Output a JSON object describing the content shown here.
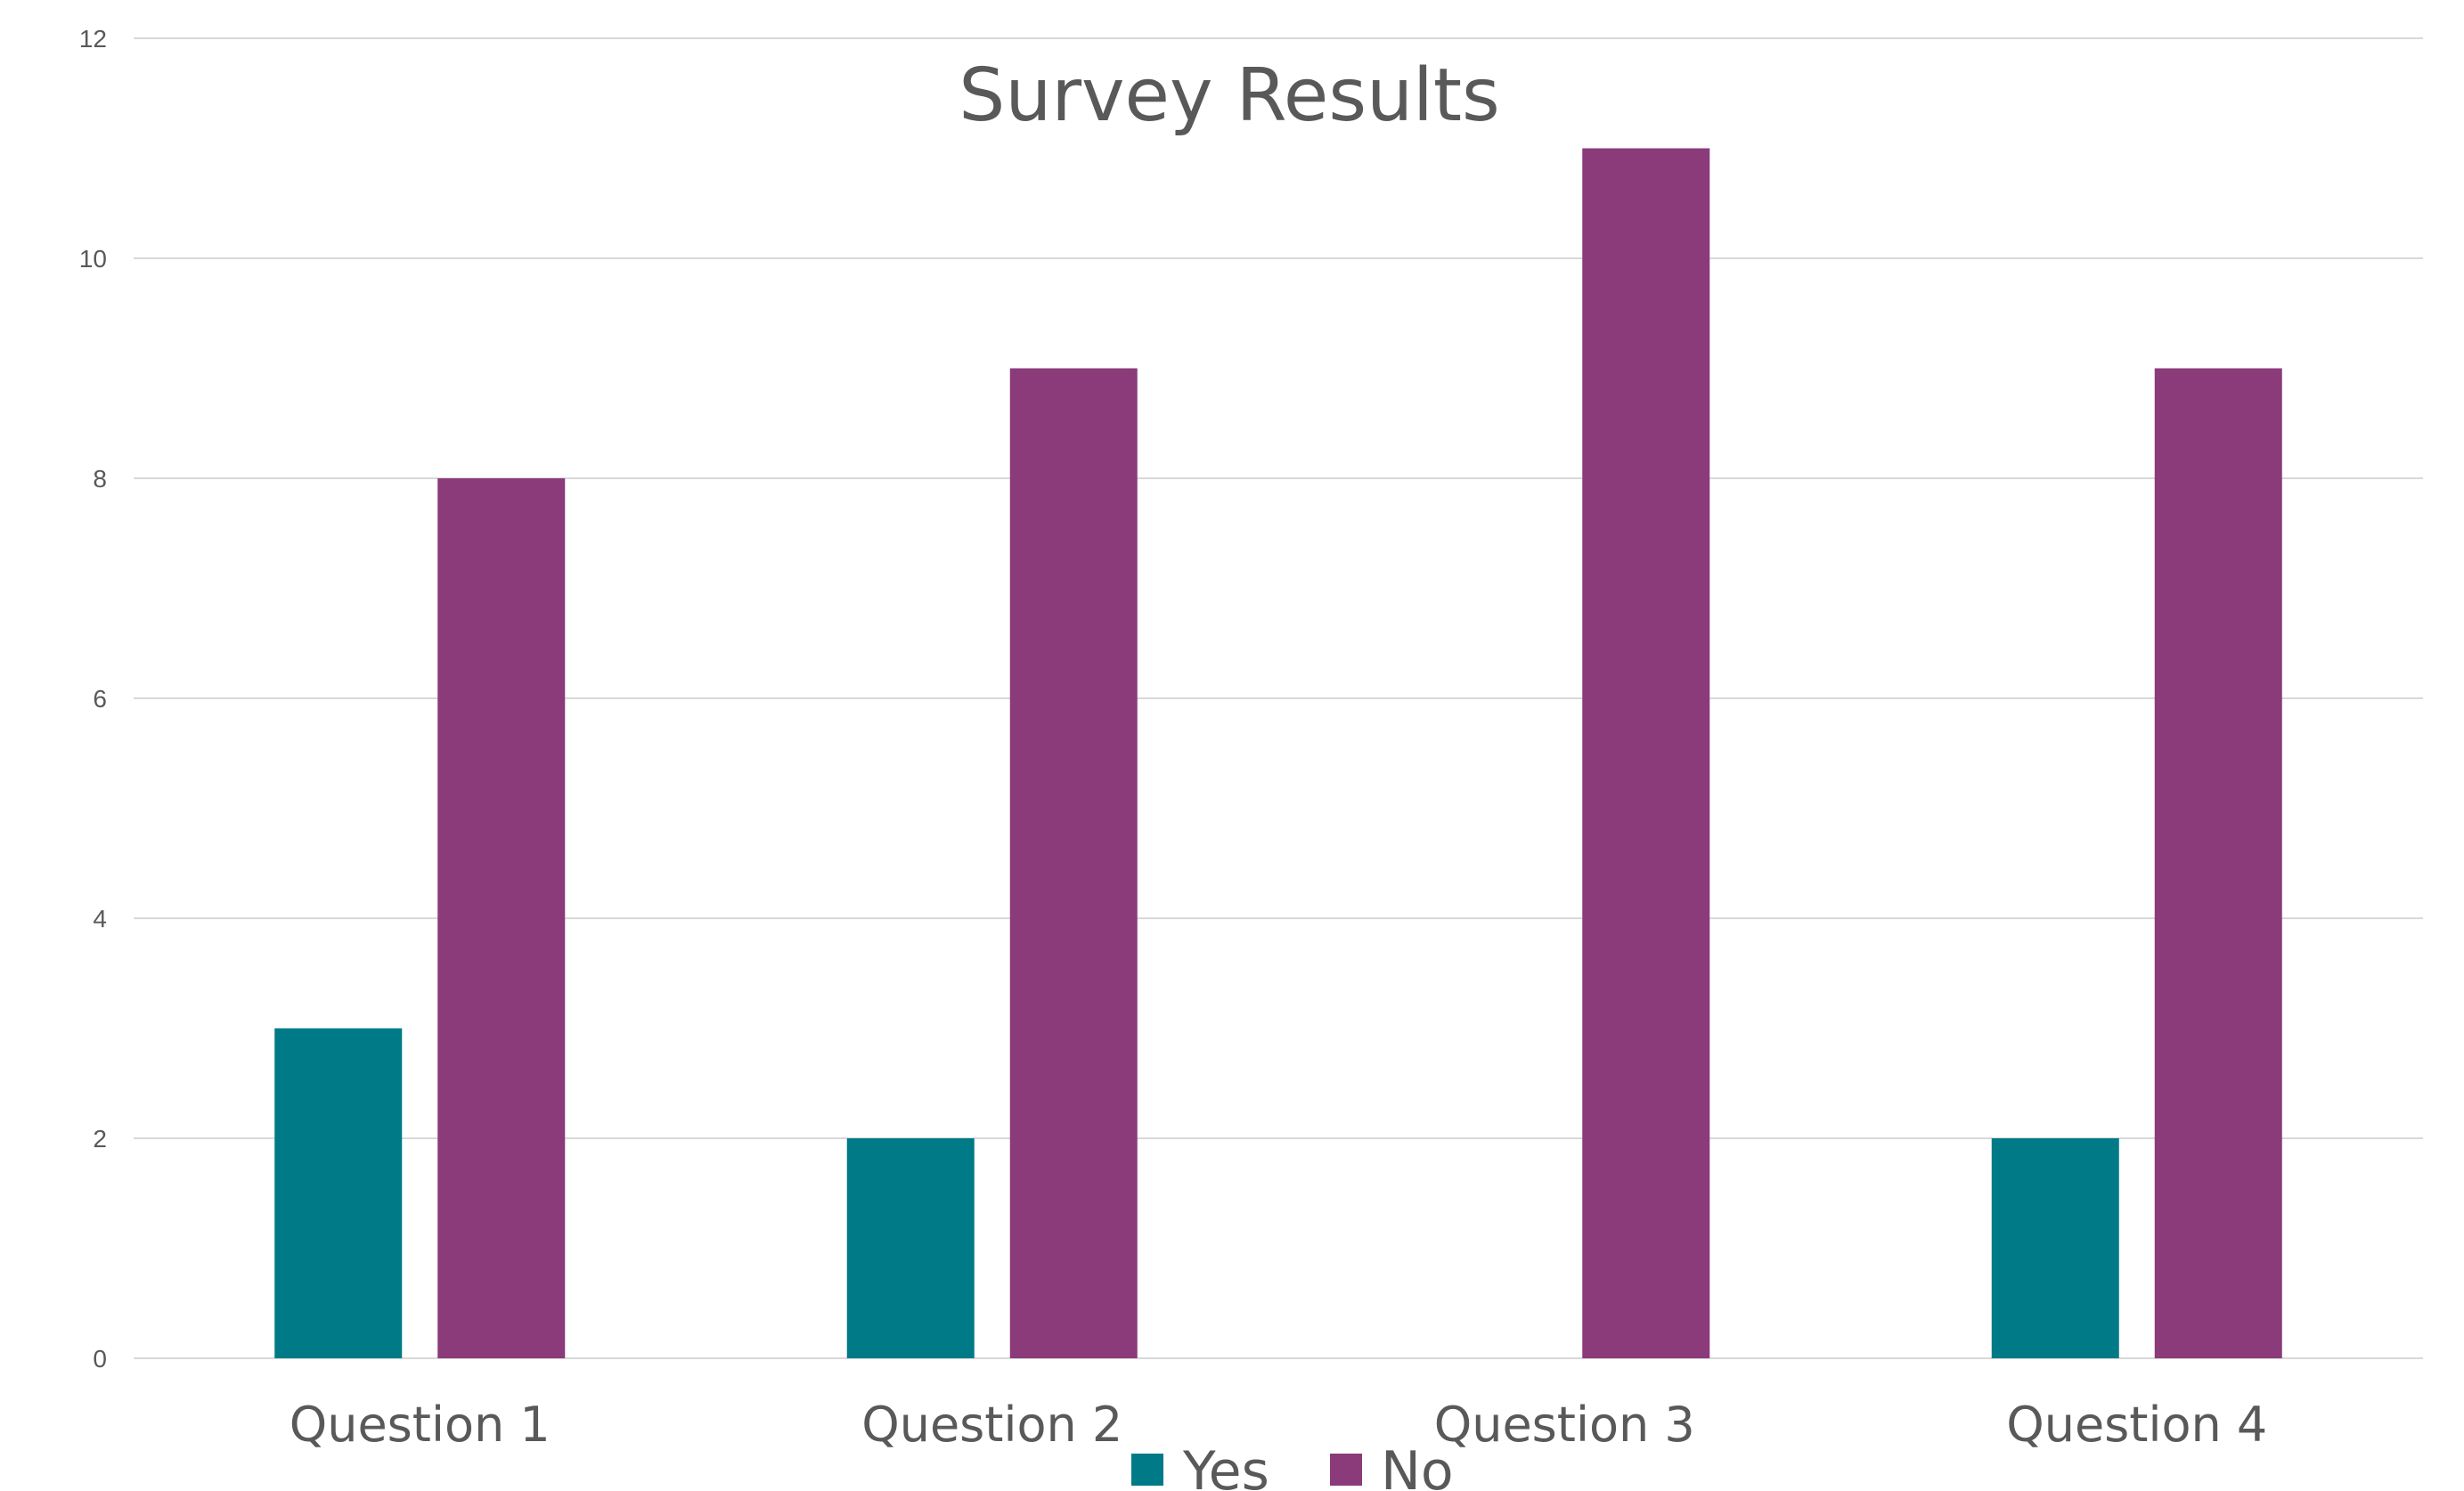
{
  "chart_data": {
    "type": "bar",
    "title": "Survey Results",
    "xlabel": "",
    "ylabel": "",
    "categories": [
      "Question 1",
      "Question 2",
      "Question 3",
      "Question 4"
    ],
    "series": [
      {
        "name": "Yes",
        "values": [
          3,
          2,
          0,
          2
        ],
        "color": "#007A87"
      },
      {
        "name": "No",
        "values": [
          8,
          9,
          11,
          9
        ],
        "color": "#8B3A7A"
      }
    ],
    "ylim": [
      0,
      12
    ],
    "yticks": [
      0,
      2,
      4,
      6,
      8,
      10,
      12
    ],
    "grid": true,
    "legend": "bottom"
  }
}
